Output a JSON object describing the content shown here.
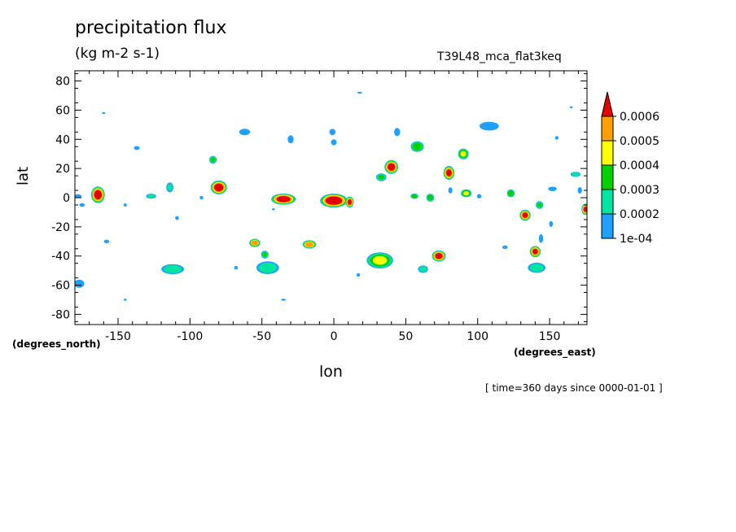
{
  "chart_data": {
    "type": "contour",
    "title": "precipitation flux",
    "units": "(kg m-2 s-1)",
    "run_label": "T39L48_mca_flat3keq",
    "xlabel": "lon",
    "ylabel": "lat",
    "x_units": "(degrees_east)",
    "y_units": "(degrees_north)",
    "time_note": "[ time=360 days since 0000-01-01 ]",
    "xlim": [
      -180,
      176
    ],
    "ylim": [
      -87,
      87
    ],
    "x_ticks": [
      -150,
      -100,
      -50,
      0,
      50,
      100,
      150
    ],
    "x_tick_labels": [
      "-150",
      "-100",
      "-50",
      "0",
      "50",
      "100",
      "150"
    ],
    "y_ticks": [
      -80,
      -60,
      -40,
      -20,
      0,
      20,
      40,
      60,
      80
    ],
    "y_tick_labels": [
      "-80",
      "-60",
      "-40",
      "-20",
      "0",
      "20",
      "40",
      "60",
      "80"
    ],
    "grid": false,
    "colorbar": {
      "position": "right",
      "levels": [
        0.0001,
        0.0002,
        0.0003,
        0.0004,
        0.0005,
        0.0006
      ],
      "labels": [
        "1e-04",
        "0.0002",
        "0.0003",
        "0.0004",
        "0.0005",
        "0.0006"
      ],
      "colors": [
        "#1ea0ff",
        "#00e6a0",
        "#00d200",
        "#ffff00",
        "#ffa000",
        "#e60000"
      ],
      "extend": "max"
    },
    "features": [
      {
        "lon": -164,
        "lat": 2,
        "rx": 5,
        "ry": 6,
        "peak": 0.00065
      },
      {
        "lon": -178,
        "lat": 1,
        "rx": 4,
        "ry": 2,
        "peak": 0.00013
      },
      {
        "lon": -177,
        "lat": -59,
        "rx": 5,
        "ry": 4,
        "peak": 0.00014
      },
      {
        "lon": -175,
        "lat": -5,
        "rx": 3,
        "ry": 2,
        "peak": 0.00012
      },
      {
        "lon": -158,
        "lat": -30,
        "rx": 3,
        "ry": 2,
        "peak": 0.00012
      },
      {
        "lon": -145,
        "lat": -5,
        "rx": 2,
        "ry": 2,
        "peak": 0.00011
      },
      {
        "lon": -137,
        "lat": 34,
        "rx": 3,
        "ry": 2,
        "peak": 0.00013
      },
      {
        "lon": -127,
        "lat": 1,
        "rx": 4,
        "ry": 2,
        "peak": 0.00026
      },
      {
        "lon": -114,
        "lat": 7,
        "rx": 3,
        "ry": 4,
        "peak": 0.00023
      },
      {
        "lon": -112,
        "lat": -49,
        "rx": 9,
        "ry": 4,
        "peak": 0.00028
      },
      {
        "lon": -80,
        "lat": 7,
        "rx": 6,
        "ry": 5,
        "peak": 0.00065
      },
      {
        "lon": -84,
        "lat": 26,
        "rx": 3,
        "ry": 3,
        "peak": 0.00032
      },
      {
        "lon": -62,
        "lat": 45,
        "rx": 5,
        "ry": 3,
        "peak": 0.00016
      },
      {
        "lon": -55,
        "lat": -31,
        "rx": 4,
        "ry": 3,
        "peak": 0.00058
      },
      {
        "lon": -48,
        "lat": -39,
        "rx": 3,
        "ry": 3,
        "peak": 0.00032
      },
      {
        "lon": -46,
        "lat": -48,
        "rx": 9,
        "ry": 5,
        "peak": 0.00028
      },
      {
        "lon": -35,
        "lat": -1,
        "rx": 9,
        "ry": 4,
        "peak": 0.00065
      },
      {
        "lon": -30,
        "lat": 40,
        "rx": 3,
        "ry": 4,
        "peak": 0.00014
      },
      {
        "lon": -17,
        "lat": -32,
        "rx": 5,
        "ry": 3,
        "peak": 0.00058
      },
      {
        "lon": 0,
        "lat": -2,
        "rx": 10,
        "ry": 5,
        "peak": 0.00068
      },
      {
        "lon": 11,
        "lat": -3,
        "rx": 3,
        "ry": 4,
        "peak": 0.00062
      },
      {
        "lon": -1,
        "lat": 45,
        "rx": 3,
        "ry": 3,
        "peak": 0.00015
      },
      {
        "lon": 0,
        "lat": 38,
        "rx": 3,
        "ry": 3,
        "peak": 0.00013
      },
      {
        "lon": 40,
        "lat": 21,
        "rx": 5,
        "ry": 5,
        "peak": 0.00064
      },
      {
        "lon": 33,
        "lat": 14,
        "rx": 4,
        "ry": 3,
        "peak": 0.00032
      },
      {
        "lon": 32,
        "lat": -43,
        "rx": 10,
        "ry": 6,
        "peak": 0.00042
      },
      {
        "lon": 44,
        "lat": 45,
        "rx": 3,
        "ry": 4,
        "peak": 0.00014
      },
      {
        "lon": 58,
        "lat": 35,
        "rx": 5,
        "ry": 4,
        "peak": 0.00038
      },
      {
        "lon": 56,
        "lat": 1,
        "rx": 3,
        "ry": 2,
        "peak": 0.00038
      },
      {
        "lon": 67,
        "lat": 0,
        "rx": 3,
        "ry": 3,
        "peak": 0.00038
      },
      {
        "lon": 73,
        "lat": -40,
        "rx": 5,
        "ry": 4,
        "peak": 0.00064
      },
      {
        "lon": 62,
        "lat": -49,
        "rx": 4,
        "ry": 3,
        "peak": 0.00026
      },
      {
        "lon": 80,
        "lat": 17,
        "rx": 4,
        "ry": 5,
        "peak": 0.00062
      },
      {
        "lon": 90,
        "lat": 30,
        "rx": 4,
        "ry": 4,
        "peak": 0.00042
      },
      {
        "lon": 92,
        "lat": 3,
        "rx": 4,
        "ry": 3,
        "peak": 0.00042
      },
      {
        "lon": 108,
        "lat": 49,
        "rx": 9,
        "ry": 4,
        "peak": 0.00016
      },
      {
        "lon": 123,
        "lat": 3,
        "rx": 3,
        "ry": 3,
        "peak": 0.00038
      },
      {
        "lon": 133,
        "lat": -12,
        "rx": 4,
        "ry": 4,
        "peak": 0.00062
      },
      {
        "lon": 140,
        "lat": -37,
        "rx": 4,
        "ry": 4,
        "peak": 0.00062
      },
      {
        "lon": 141,
        "lat": -48,
        "rx": 7,
        "ry": 4,
        "peak": 0.00028
      },
      {
        "lon": 143,
        "lat": -5,
        "rx": 3,
        "ry": 3,
        "peak": 0.00032
      },
      {
        "lon": 152,
        "lat": 6,
        "rx": 4,
        "ry": 2,
        "peak": 0.00016
      },
      {
        "lon": 168,
        "lat": 16,
        "rx": 4,
        "ry": 2,
        "peak": 0.00027
      },
      {
        "lon": 171,
        "lat": 5,
        "rx": 2,
        "ry": 3,
        "peak": 0.00016
      },
      {
        "lon": 175,
        "lat": -8,
        "rx": 3,
        "ry": 4,
        "peak": 0.00062
      },
      {
        "lon": 151,
        "lat": -18,
        "rx": 2,
        "ry": 3,
        "peak": 0.00013
      },
      {
        "lon": 155,
        "lat": 41,
        "rx": 2,
        "ry": 2,
        "peak": 0.00012
      },
      {
        "lon": 101,
        "lat": 1,
        "rx": 2,
        "ry": 2,
        "peak": 0.00016
      },
      {
        "lon": -92,
        "lat": 0,
        "rx": 2,
        "ry": 2,
        "peak": 0.00012
      },
      {
        "lon": -109,
        "lat": -14,
        "rx": 2,
        "ry": 2,
        "peak": 0.00013
      },
      {
        "lon": -68,
        "lat": -48,
        "rx": 2,
        "ry": 2,
        "peak": 0.00012
      },
      {
        "lon": 17,
        "lat": -53,
        "rx": 2,
        "ry": 2,
        "peak": 0.00012
      },
      {
        "lon": -145,
        "lat": -70,
        "rx": 2,
        "ry": 1,
        "peak": 0.00011
      },
      {
        "lon": -35,
        "lat": -70,
        "rx": 3,
        "ry": 1,
        "peak": 0.00011
      },
      {
        "lon": 18,
        "lat": 72,
        "rx": 3,
        "ry": 1,
        "peak": 0.00011
      },
      {
        "lon": -160,
        "lat": 58,
        "rx": 2,
        "ry": 1,
        "peak": 0.00011
      },
      {
        "lon": 119,
        "lat": -34,
        "rx": 3,
        "ry": 2,
        "peak": 0.00012
      },
      {
        "lon": 165,
        "lat": 62,
        "rx": 2,
        "ry": 1,
        "peak": 0.00011
      },
      {
        "lon": 81,
        "lat": 5,
        "rx": 2,
        "ry": 3,
        "peak": 0.00014
      },
      {
        "lon": 144,
        "lat": -28,
        "rx": 2,
        "ry": 4,
        "peak": 0.00016
      },
      {
        "lon": -42,
        "lat": -8,
        "rx": 2,
        "ry": 1,
        "peak": 0.00011
      }
    ]
  }
}
